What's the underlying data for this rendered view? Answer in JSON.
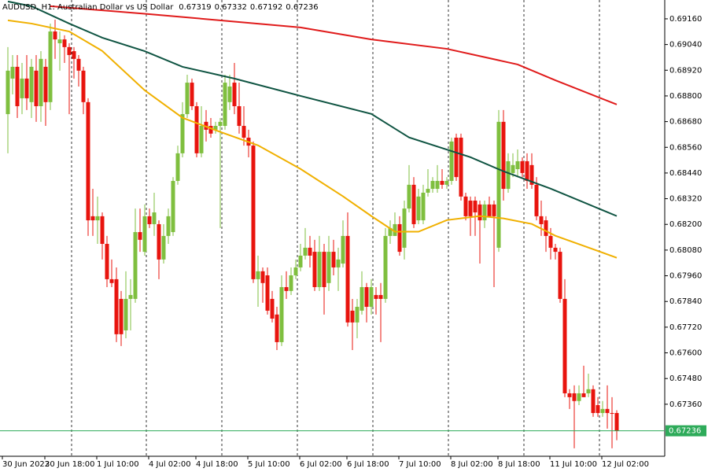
{
  "chart_data": {
    "type": "candlestick",
    "title": "AUDUSD, H1:  Australian Dollar vs US Dollar",
    "up_color": "#7fbf3f",
    "down_color": "#e8140e",
    "ylim": [
      0.67117,
      0.69248
    ],
    "yticks": [
      {
        "value": 0.6916,
        "label": "0.69160"
      },
      {
        "value": 0.6904,
        "label": "0.69040"
      },
      {
        "value": 0.6892,
        "label": "0.68920"
      },
      {
        "value": 0.688,
        "label": "0.68800"
      },
      {
        "value": 0.6868,
        "label": "0.68680"
      },
      {
        "value": 0.6856,
        "label": "0.68560"
      },
      {
        "value": 0.6844,
        "label": "0.68440"
      },
      {
        "value": 0.6832,
        "label": "0.68320"
      },
      {
        "value": 0.682,
        "label": "0.68200"
      },
      {
        "value": 0.6808,
        "label": "0.68080"
      },
      {
        "value": 0.6796,
        "label": "0.67960"
      },
      {
        "value": 0.6784,
        "label": "0.67840"
      },
      {
        "value": 0.6772,
        "label": "0.67720"
      },
      {
        "value": 0.676,
        "label": "0.67600"
      },
      {
        "value": 0.6748,
        "label": "0.67480"
      },
      {
        "value": 0.6736,
        "label": "0.67360"
      }
    ],
    "xticks": [
      {
        "value": 0,
        "label": "30 Jun 2022"
      },
      {
        "value": 9,
        "label": "30 Jun 18:00"
      },
      {
        "value": 20,
        "label": "1 Jul 10:00"
      },
      {
        "value": 31,
        "label": "4 Jul 02:00"
      },
      {
        "value": 41,
        "label": "4 Jul 18:00"
      },
      {
        "value": 52,
        "label": "5 Jul 10:00"
      },
      {
        "value": 63,
        "label": "6 Jul 02:00"
      },
      {
        "value": 73,
        "label": "6 Jul 18:00"
      },
      {
        "value": 84,
        "label": "7 Jul 10:00"
      },
      {
        "value": 95,
        "label": "8 Jul 02:00"
      },
      {
        "value": 105,
        "label": "8 Jul 18:00"
      },
      {
        "value": 116,
        "label": "11 Jul 10:00"
      },
      {
        "value": 127,
        "label": "12 Jul 02:00"
      }
    ],
    "last_price": 0.67236,
    "last_price_color": "#2eab5a",
    "candles": [
      [
        0.68715,
        0.69028,
        0.68532,
        0.68918
      ],
      [
        0.68881,
        0.68991,
        0.68807,
        0.68936
      ],
      [
        0.68936,
        0.68991,
        0.68697,
        0.68752
      ],
      [
        0.68789,
        0.68954,
        0.68715,
        0.68881
      ],
      [
        0.68881,
        0.68991,
        0.68734,
        0.68789
      ],
      [
        0.68771,
        0.68973,
        0.68697,
        0.68936
      ],
      [
        0.68918,
        0.68991,
        0.68679,
        0.68752
      ],
      [
        0.68752,
        0.69009,
        0.68679,
        0.68973
      ],
      [
        0.68936,
        0.68973,
        0.6866,
        0.68771
      ],
      [
        0.68771,
        0.69138,
        0.68734,
        0.69101
      ],
      [
        0.69101,
        0.69156,
        0.68973,
        0.69064
      ],
      [
        0.69046,
        0.69101,
        0.68918,
        0.69064
      ],
      [
        0.69064,
        0.69083,
        0.68954,
        0.69028
      ],
      [
        0.69028,
        0.69046,
        0.68715,
        0.68991
      ],
      [
        0.69009,
        0.69028,
        0.68881,
        0.68973
      ],
      [
        0.68973,
        0.68991,
        0.68844,
        0.68918
      ],
      [
        0.68918,
        0.68936,
        0.68715,
        0.68771
      ],
      [
        0.68771,
        0.68789,
        0.68146,
        0.68219
      ],
      [
        0.68238,
        0.68366,
        0.68146,
        0.68219
      ],
      [
        0.68219,
        0.6833,
        0.68109,
        0.68238
      ],
      [
        0.68238,
        0.68256,
        0.68036,
        0.68109
      ],
      [
        0.68109,
        0.68146,
        0.67907,
        0.67944
      ],
      [
        0.67944,
        0.68036,
        0.67907,
        0.67926
      ],
      [
        0.67944,
        0.67999,
        0.6765,
        0.67687
      ],
      [
        0.67852,
        0.67889,
        0.67632,
        0.67687
      ],
      [
        0.67705,
        0.67981,
        0.67668,
        0.67852
      ],
      [
        0.67852,
        0.67944,
        0.67705,
        0.6787
      ],
      [
        0.67852,
        0.68274,
        0.67834,
        0.68164
      ],
      [
        0.68164,
        0.68274,
        0.68072,
        0.68128
      ],
      [
        0.68072,
        0.68293,
        0.68054,
        0.68238
      ],
      [
        0.68238,
        0.68274,
        0.68183,
        0.68201
      ],
      [
        0.68201,
        0.68348,
        0.68146,
        0.68256
      ],
      [
        0.68201,
        0.68219,
        0.67944,
        0.68036
      ],
      [
        0.68036,
        0.68201,
        0.68017,
        0.68146
      ],
      [
        0.68146,
        0.68274,
        0.68109,
        0.68238
      ],
      [
        0.68164,
        0.68421,
        0.68146,
        0.68403
      ],
      [
        0.68403,
        0.68568,
        0.68385,
        0.68532
      ],
      [
        0.68532,
        0.68771,
        0.68513,
        0.68715
      ],
      [
        0.68715,
        0.68899,
        0.68697,
        0.68862
      ],
      [
        0.68862,
        0.68881,
        0.68734,
        0.68752
      ],
      [
        0.68752,
        0.68771,
        0.68513,
        0.68532
      ],
      [
        0.68532,
        0.68752,
        0.68513,
        0.6866
      ],
      [
        0.68679,
        0.68734,
        0.68587,
        0.68642
      ],
      [
        0.6866,
        0.68697,
        0.68605,
        0.68624
      ],
      [
        0.68642,
        0.68679,
        0.68624,
        0.6866
      ],
      [
        0.6866,
        0.68697,
        0.68183,
        0.68679
      ],
      [
        0.6866,
        0.68899,
        0.68642,
        0.68862
      ],
      [
        0.68771,
        0.68899,
        0.68734,
        0.68844
      ],
      [
        0.68862,
        0.68954,
        0.68715,
        0.68752
      ],
      [
        0.68752,
        0.68862,
        0.68624,
        0.6866
      ],
      [
        0.6866,
        0.68752,
        0.68568,
        0.68605
      ],
      [
        0.68605,
        0.68642,
        0.68513,
        0.68568
      ],
      [
        0.68568,
        0.68587,
        0.67926,
        0.67944
      ],
      [
        0.67944,
        0.68054,
        0.67815,
        0.67981
      ],
      [
        0.67981,
        0.67999,
        0.67834,
        0.67926
      ],
      [
        0.67962,
        0.67999,
        0.67779,
        0.67797
      ],
      [
        0.67852,
        0.67889,
        0.67742,
        0.6776
      ],
      [
        0.67779,
        0.67815,
        0.67613,
        0.6765
      ],
      [
        0.6765,
        0.67962,
        0.67632,
        0.67907
      ],
      [
        0.67907,
        0.67981,
        0.67852,
        0.67889
      ],
      [
        0.67889,
        0.67999,
        0.6787,
        0.67962
      ],
      [
        0.67962,
        0.68036,
        0.67944,
        0.67999
      ],
      [
        0.67999,
        0.68109,
        0.67981,
        0.68054
      ],
      [
        0.68054,
        0.68183,
        0.68036,
        0.68091
      ],
      [
        0.68091,
        0.68146,
        0.67999,
        0.68054
      ],
      [
        0.68072,
        0.68128,
        0.67889,
        0.67907
      ],
      [
        0.67907,
        0.68146,
        0.67889,
        0.68072
      ],
      [
        0.68072,
        0.68109,
        0.67779,
        0.67907
      ],
      [
        0.67926,
        0.68146,
        0.67889,
        0.68072
      ],
      [
        0.68072,
        0.68128,
        0.67962,
        0.67999
      ],
      [
        0.67999,
        0.68091,
        0.67889,
        0.68036
      ],
      [
        0.68017,
        0.68219,
        0.67999,
        0.68146
      ],
      [
        0.68146,
        0.68256,
        0.67723,
        0.67742
      ],
      [
        0.67797,
        0.67852,
        0.67613,
        0.67742
      ],
      [
        0.67742,
        0.67852,
        0.67668,
        0.67815
      ],
      [
        0.67797,
        0.67981,
        0.67779,
        0.67907
      ],
      [
        0.67907,
        0.67926,
        0.67742,
        0.67815
      ],
      [
        0.67815,
        0.67944,
        0.67779,
        0.67907
      ],
      [
        0.6787,
        0.67907,
        0.67779,
        0.67852
      ],
      [
        0.6787,
        0.67926,
        0.6765,
        0.67852
      ],
      [
        0.67852,
        0.68183,
        0.67834,
        0.68146
      ],
      [
        0.68146,
        0.68219,
        0.68109,
        0.68183
      ],
      [
        0.68146,
        0.68256,
        0.68146,
        0.68201
      ],
      [
        0.68201,
        0.68238,
        0.68054,
        0.68072
      ],
      [
        0.68091,
        0.68311,
        0.68036,
        0.68274
      ],
      [
        0.68274,
        0.68477,
        0.68256,
        0.68385
      ],
      [
        0.68385,
        0.68421,
        0.68183,
        0.68201
      ],
      [
        0.68219,
        0.68366,
        0.68201,
        0.6833
      ],
      [
        0.68219,
        0.68385,
        0.68201,
        0.68348
      ],
      [
        0.68348,
        0.68458,
        0.6833,
        0.68366
      ],
      [
        0.68366,
        0.68421,
        0.68348,
        0.68403
      ],
      [
        0.68366,
        0.68477,
        0.68348,
        0.68403
      ],
      [
        0.68403,
        0.68458,
        0.68366,
        0.68385
      ],
      [
        0.68385,
        0.68421,
        0.68366,
        0.68403
      ],
      [
        0.68403,
        0.68605,
        0.68385,
        0.68587
      ],
      [
        0.68605,
        0.68624,
        0.68403,
        0.68421
      ],
      [
        0.68605,
        0.68624,
        0.68311,
        0.6833
      ],
      [
        0.6833,
        0.68348,
        0.68219,
        0.68238
      ],
      [
        0.68311,
        0.6833,
        0.68146,
        0.68238
      ],
      [
        0.68311,
        0.6833,
        0.68146,
        0.68256
      ],
      [
        0.68293,
        0.68311,
        0.68017,
        0.68219
      ],
      [
        0.68219,
        0.68311,
        0.68183,
        0.68293
      ],
      [
        0.68293,
        0.6833,
        0.68238,
        0.68238
      ],
      [
        0.68293,
        0.68311,
        0.67907,
        0.68238
      ],
      [
        0.68091,
        0.68734,
        0.68072,
        0.68679
      ],
      [
        0.68679,
        0.68734,
        0.68311,
        0.68366
      ],
      [
        0.68366,
        0.68532,
        0.68348,
        0.68495
      ],
      [
        0.6844,
        0.68532,
        0.68421,
        0.68477
      ],
      [
        0.68458,
        0.6855,
        0.68421,
        0.68495
      ],
      [
        0.68495,
        0.68513,
        0.68421,
        0.6844
      ],
      [
        0.68495,
        0.68532,
        0.68366,
        0.68403
      ],
      [
        0.68477,
        0.68532,
        0.68366,
        0.68385
      ],
      [
        0.68385,
        0.68421,
        0.68219,
        0.68238
      ],
      [
        0.68238,
        0.68311,
        0.68146,
        0.68201
      ],
      [
        0.68219,
        0.68238,
        0.68072,
        0.68146
      ],
      [
        0.68146,
        0.68183,
        0.68036,
        0.68091
      ],
      [
        0.68091,
        0.68109,
        0.68036,
        0.68072
      ],
      [
        0.68072,
        0.68091,
        0.67834,
        0.67852
      ],
      [
        0.67852,
        0.67944,
        0.67393,
        0.67411
      ],
      [
        0.67411,
        0.6743,
        0.67338,
        0.67393
      ],
      [
        0.67411,
        0.67448,
        0.67154,
        0.67375
      ],
      [
        0.67375,
        0.67448,
        0.67356,
        0.67411
      ],
      [
        0.67411,
        0.6754,
        0.67393,
        0.67393
      ],
      [
        0.67411,
        0.67503,
        0.67393,
        0.6743
      ],
      [
        0.6743,
        0.67448,
        0.67301,
        0.67319
      ],
      [
        0.67356,
        0.67393,
        0.67301,
        0.67319
      ],
      [
        0.67319,
        0.67375,
        0.67301,
        0.67338
      ],
      [
        0.67338,
        0.67448,
        0.67246,
        0.67319
      ],
      [
        0.67319,
        0.67393,
        0.67154,
        0.67319
      ],
      [
        0.67319,
        0.67332,
        0.67192,
        0.67236
      ]
    ],
    "moving_averages": [
      {
        "color": "#e01b1b",
        "x": [
          9,
          30,
          62,
          77,
          93,
          108,
          116,
          129
        ],
        "values": [
          0.69219,
          0.69182,
          0.6912,
          0.69064,
          0.6902,
          0.68947,
          0.68873,
          0.6876
        ]
      },
      {
        "color": "#0f5442",
        "x": [
          0,
          5,
          13,
          20,
          29,
          37,
          48,
          62,
          77,
          85,
          98,
          105,
          115,
          129
        ],
        "values": [
          0.69241,
          0.69219,
          0.69138,
          0.69072,
          0.69009,
          0.68936,
          0.68881,
          0.688,
          0.68716,
          0.68606,
          0.68514,
          0.68448,
          0.68367,
          0.68239
        ]
      },
      {
        "color": "#f0b000",
        "x": [
          0,
          5,
          13,
          20,
          29,
          37,
          45,
          53,
          62,
          71,
          77,
          82,
          87,
          93,
          100,
          105,
          111,
          116,
          123,
          129
        ],
        "values": [
          0.69153,
          0.69138,
          0.69101,
          0.6901,
          0.68826,
          0.68698,
          0.68632,
          0.68569,
          0.68459,
          0.68331,
          0.68239,
          0.68166,
          0.68166,
          0.6822,
          0.68239,
          0.68228,
          0.68202,
          0.68147,
          0.68092,
          0.68044
        ]
      }
    ]
  }
}
